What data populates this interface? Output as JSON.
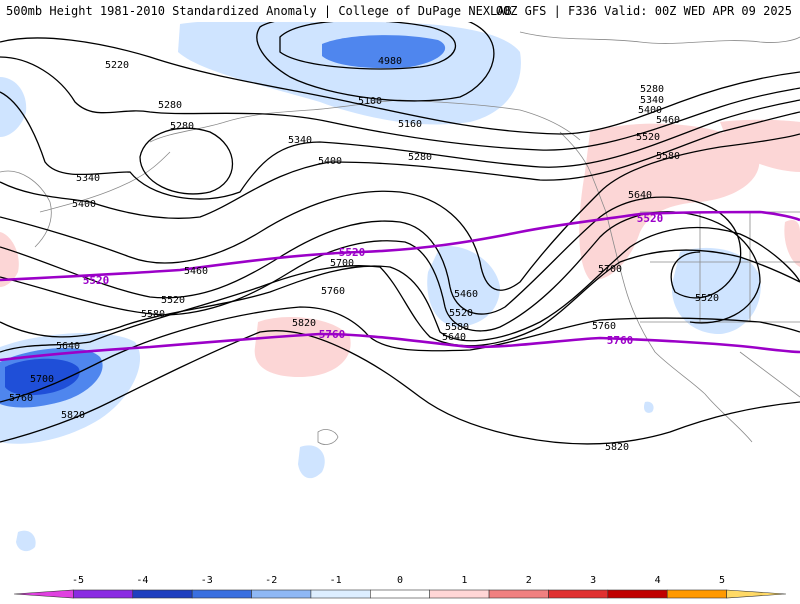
{
  "header": {
    "left": "500mb Height 1981-2010 Standardized Anomaly | College of DuPage NEXLAB",
    "right": "00Z GFS | F336 Valid: 00Z WED APR 09 2025"
  },
  "map": {
    "contour_labels": [
      "4980",
      "5100",
      "5160",
      "5220",
      "5280",
      "5280",
      "5280",
      "5280",
      "5340",
      "5340",
      "5340",
      "5400",
      "5400",
      "5400",
      "5460",
      "5460",
      "5460",
      "5520",
      "5520",
      "5520",
      "5520",
      "5580",
      "5580",
      "5580",
      "5640",
      "5640",
      "5640",
      "5700",
      "5700",
      "5700",
      "5760",
      "5760",
      "5760",
      "5820",
      "5820",
      "5820"
    ],
    "highlight_labels": [
      "5520",
      "5520",
      "5760",
      "5760",
      "5520"
    ],
    "colors": {
      "contour": "#000000",
      "highlight": "#9b00c8",
      "neg_strong": "#1f4fd8",
      "neg_med": "#4f86ee",
      "neg_light": "#cfe4ff",
      "pos_light": "#fcd6d6",
      "coast": "#8a8a8a"
    }
  },
  "colorbar": {
    "ticks": [
      "-5",
      "-4",
      "-3",
      "-2",
      "-1",
      "0",
      "1",
      "2",
      "3",
      "4",
      "5"
    ],
    "colors": [
      "#e040e0",
      "#8a2be2",
      "#1f3fbf",
      "#3a6fe0",
      "#8fb8f5",
      "#ddeeff",
      "#ffffff",
      "#ffd6d6",
      "#f08080",
      "#e03030",
      "#c00000",
      "#ff9900",
      "#ffd966"
    ]
  }
}
